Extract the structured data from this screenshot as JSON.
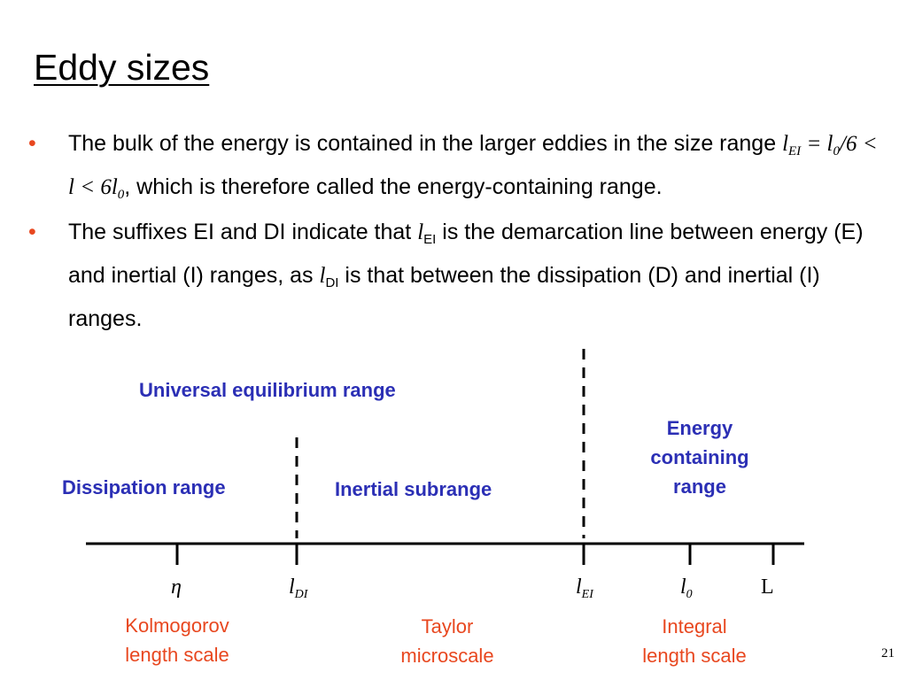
{
  "title": "Eddy sizes",
  "bullets": [
    {
      "text_a": "The bulk of the energy is contained in the larger eddies in the size range ",
      "math_l": "l",
      "math_sub": "EI",
      "math_rest": " = l",
      "math_sub0": "0",
      "math_rest2": "/6 < l < 6l",
      "math_sub02": "0",
      "text_b": ", which is therefore called the energy-containing range."
    },
    {
      "text_a": "The suffixes EI and DI indicate that ",
      "math_l1": "l",
      "sub1": "EI",
      "text_b": " is the demarcation line between energy (E) and inertial (I) ranges, as ",
      "math_l2": "l",
      "sub2": "DI",
      "text_c": " is that between the dissipation (D) and inertial (I) ranges."
    }
  ],
  "ranges": {
    "universal": "Universal equilibrium range",
    "dissipation": "Dissipation range",
    "inertial": "Inertial subrange",
    "energy_line1": "Energy",
    "energy_line2": "containing",
    "energy_line3": "range"
  },
  "scales": {
    "eta": "η",
    "l_di_base": "l",
    "l_di_sub": "DI",
    "l_ei_base": "l",
    "l_ei_sub": "EI",
    "l0_base": "l",
    "l0_sub": "0",
    "L": "L"
  },
  "scale_names": {
    "kolmogorov_line1": "Kolmogorov",
    "kolmogorov_line2": "length scale",
    "taylor_line1": "Taylor",
    "taylor_line2": "microscale",
    "integral_line1": "Integral",
    "integral_line2": "length scale"
  },
  "page_number": "21",
  "colors": {
    "bullet": "#e8471f",
    "range_label": "#2b2fb5",
    "scale_name": "#e8471f"
  }
}
